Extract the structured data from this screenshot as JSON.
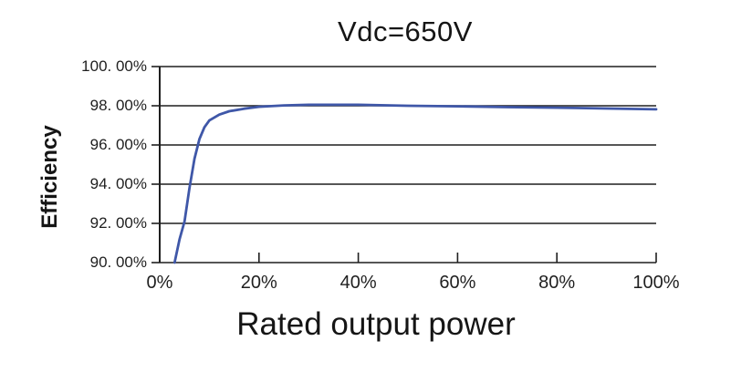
{
  "chart_data": {
    "type": "line",
    "title": "Vdc=650V",
    "xlabel": "Rated output power",
    "ylabel": "Efficiency",
    "xlim": [
      0,
      100
    ],
    "ylim": [
      90,
      100
    ],
    "x_ticks": [
      "0%",
      "20%",
      "40%",
      "60%",
      "80%",
      "100%"
    ],
    "y_ticks": [
      "100. 00%",
      "98. 00%",
      "96. 00%",
      "94. 00%",
      "92. 00%",
      "90. 00%"
    ],
    "grid": "horizontal-only",
    "legend": "none",
    "line_color": "#3f57a8",
    "axis_color": "#1f1f1f",
    "series": [
      {
        "name": "Efficiency at Vdc=650V",
        "x": [
          3,
          4,
          5,
          6,
          7,
          8,
          9,
          10,
          12,
          14,
          17,
          20,
          25,
          30,
          40,
          50,
          60,
          70,
          80,
          90,
          100
        ],
        "y": [
          90.0,
          91.2,
          92.1,
          93.8,
          95.3,
          96.3,
          96.9,
          97.25,
          97.55,
          97.72,
          97.85,
          97.95,
          98.02,
          98.05,
          98.05,
          98.0,
          97.97,
          97.93,
          97.9,
          97.86,
          97.82
        ]
      }
    ]
  }
}
